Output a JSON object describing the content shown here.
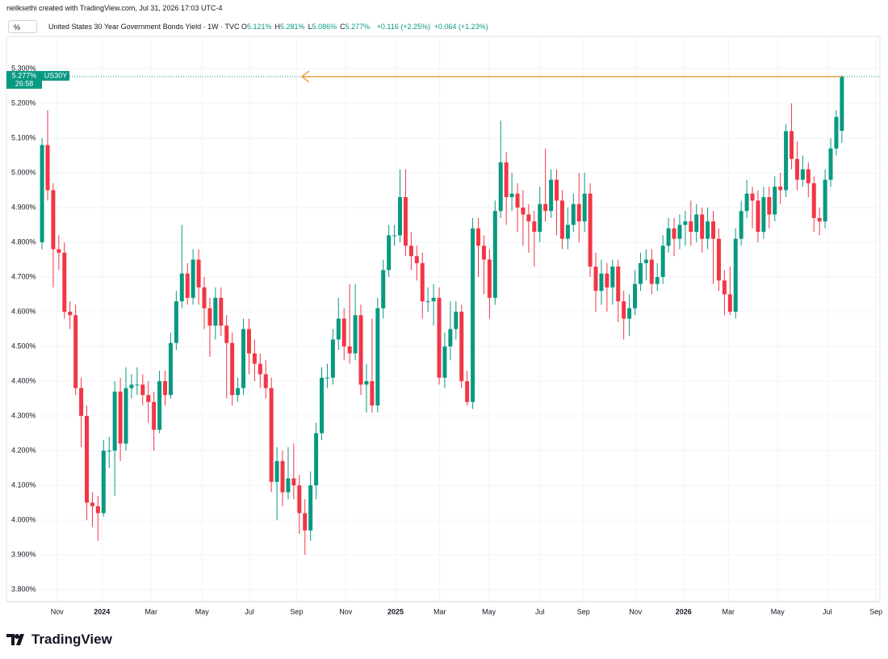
{
  "credit": "neilksethi created with TradingView.com, Jul 31, 2026 17:03 UTC-4",
  "chart_data": {
    "type": "candlestick",
    "unit_box": "%",
    "title": "United States 30 Year Government Bonds Yield · 1W · TVC",
    "ohlc_legend": [
      {
        "label": "O",
        "value": "5.121%"
      },
      {
        "label": "H",
        "value": "5.281%"
      },
      {
        "label": "L",
        "value": "5.086%"
      },
      {
        "label": "C",
        "value": "5.277%"
      }
    ],
    "change": "+0.116 (+2.25%)",
    "change_extended": "+0.064 (+1.23%)",
    "price_label": {
      "value": "5.277%",
      "symbol": "US30Y",
      "countdown": "26:58"
    },
    "up_color": "#089981",
    "down_color": "#f23645",
    "grid": true,
    "open": [
      4.8,
      5.08,
      4.95,
      4.78,
      4.77,
      4.6,
      4.59,
      4.38,
      4.3,
      4.05,
      4.04,
      4.02,
      4.2,
      4.2,
      4.37,
      4.22,
      4.38,
      4.39,
      4.39,
      4.36,
      4.34,
      4.26,
      4.4,
      4.36,
      4.51,
      4.63,
      4.71,
      4.64,
      4.75,
      4.67,
      4.61,
      4.56,
      4.64,
      4.56,
      4.51,
      4.36,
      4.38,
      4.55,
      4.48,
      4.45,
      4.42,
      4.38,
      4.11,
      4.17,
      4.08,
      4.12,
      4.1,
      4.02,
      3.97,
      4.1,
      4.25,
      4.41,
      4.41,
      4.52,
      4.58,
      4.5,
      4.48,
      4.59,
      4.39,
      4.4,
      4.33,
      4.61,
      4.72,
      4.82,
      4.82,
      4.93,
      4.79,
      4.76,
      4.74,
      4.63,
      4.63,
      4.64,
      4.41,
      4.5,
      4.55,
      4.6,
      4.4,
      4.34,
      4.84,
      4.79,
      4.75,
      4.64,
      4.89,
      5.03,
      4.93,
      4.94,
      4.9,
      4.88,
      4.86,
      4.83,
      4.91,
      4.89,
      4.98,
      4.92,
      4.81,
      4.85,
      4.91,
      4.86,
      4.94,
      4.73,
      4.66,
      4.71,
      4.67,
      4.73,
      4.63,
      4.58,
      4.61,
      4.68,
      4.74,
      4.75,
      4.68,
      4.7,
      4.79,
      4.84,
      4.81,
      4.85,
      4.86,
      4.83,
      4.88,
      4.81,
      4.86,
      4.81,
      4.69,
      4.65,
      4.6,
      4.81,
      4.89,
      4.94,
      4.92,
      4.83,
      4.93,
      4.88,
      4.96,
      4.95,
      5.12,
      5.04,
      4.98,
      5.01,
      4.97,
      4.87,
      4.86,
      4.98,
      5.07,
      5.121
    ],
    "high": [
      5.1,
      5.18,
      4.97,
      4.82,
      4.8,
      4.63,
      4.62,
      4.41,
      4.33,
      4.08,
      4.07,
      4.23,
      4.24,
      4.4,
      4.41,
      4.44,
      4.42,
      4.44,
      4.42,
      4.4,
      4.37,
      4.43,
      4.43,
      4.54,
      4.66,
      4.85,
      4.74,
      4.78,
      4.78,
      4.7,
      4.64,
      4.67,
      4.67,
      4.59,
      4.54,
      4.41,
      4.58,
      4.58,
      4.52,
      4.48,
      4.46,
      4.41,
      4.21,
      4.2,
      4.21,
      4.22,
      4.13,
      4.06,
      4.14,
      4.28,
      4.44,
      4.45,
      4.55,
      4.64,
      4.61,
      4.68,
      4.68,
      4.62,
      4.45,
      4.58,
      4.64,
      4.75,
      4.85,
      4.85,
      5.01,
      5.01,
      4.83,
      4.79,
      4.77,
      4.67,
      4.68,
      4.67,
      4.54,
      4.63,
      4.63,
      4.62,
      4.43,
      4.87,
      4.87,
      4.82,
      4.78,
      4.92,
      5.15,
      5.06,
      5.0,
      4.97,
      4.95,
      4.91,
      4.89,
      4.96,
      5.07,
      5.01,
      5.01,
      4.95,
      4.9,
      4.94,
      5.0,
      5.0,
      4.97,
      4.77,
      4.75,
      4.74,
      4.75,
      4.75,
      4.66,
      4.65,
      4.72,
      4.77,
      4.78,
      4.78,
      4.74,
      4.82,
      4.87,
      4.87,
      4.88,
      4.89,
      4.92,
      4.91,
      4.9,
      4.9,
      4.89,
      4.84,
      4.72,
      4.73,
      4.84,
      4.92,
      4.98,
      4.96,
      4.95,
      4.96,
      4.96,
      4.99,
      5.0,
      5.14,
      5.2,
      5.09,
      5.05,
      5.03,
      4.99,
      4.9,
      5.01,
      5.1,
      5.18,
      5.281
    ],
    "low": [
      4.78,
      4.92,
      4.67,
      4.72,
      4.58,
      4.55,
      4.36,
      4.21,
      4.0,
      3.98,
      3.94,
      4.01,
      4.15,
      4.07,
      4.17,
      4.2,
      4.35,
      4.36,
      4.33,
      4.28,
      4.2,
      4.25,
      4.33,
      4.35,
      4.49,
      4.61,
      4.62,
      4.62,
      4.62,
      4.55,
      4.47,
      4.52,
      4.53,
      4.35,
      4.33,
      4.34,
      4.36,
      4.42,
      4.4,
      4.38,
      4.35,
      4.08,
      4.0,
      4.04,
      4.06,
      4.06,
      3.96,
      3.9,
      3.94,
      4.06,
      4.23,
      4.38,
      4.39,
      4.49,
      4.46,
      4.45,
      4.46,
      4.36,
      4.31,
      4.31,
      4.31,
      4.58,
      4.7,
      4.79,
      4.8,
      4.76,
      4.72,
      4.69,
      4.58,
      4.6,
      4.56,
      4.39,
      4.38,
      4.46,
      4.52,
      4.38,
      4.33,
      4.32,
      4.7,
      4.65,
      4.58,
      4.62,
      4.87,
      4.85,
      4.89,
      4.83,
      4.79,
      4.77,
      4.73,
      4.8,
      4.86,
      4.87,
      4.82,
      4.78,
      4.78,
      4.83,
      4.8,
      4.83,
      4.7,
      4.6,
      4.62,
      4.6,
      4.62,
      4.57,
      4.52,
      4.53,
      4.59,
      4.66,
      4.69,
      4.65,
      4.66,
      4.68,
      4.77,
      4.76,
      4.78,
      4.79,
      4.79,
      4.8,
      4.77,
      4.78,
      4.68,
      4.66,
      4.59,
      4.59,
      4.58,
      4.79,
      4.87,
      4.84,
      4.8,
      4.81,
      4.84,
      4.86,
      4.91,
      4.93,
      5.01,
      4.95,
      4.96,
      4.93,
      4.83,
      4.82,
      4.84,
      4.96,
      5.05,
      5.086
    ],
    "close": [
      5.08,
      4.95,
      4.78,
      4.77,
      4.6,
      4.59,
      4.38,
      4.3,
      4.05,
      4.04,
      4.02,
      4.2,
      4.2,
      4.37,
      4.22,
      4.38,
      4.39,
      4.39,
      4.36,
      4.34,
      4.26,
      4.4,
      4.36,
      4.51,
      4.63,
      4.71,
      4.64,
      4.75,
      4.67,
      4.61,
      4.56,
      4.64,
      4.56,
      4.51,
      4.36,
      4.38,
      4.55,
      4.48,
      4.45,
      4.42,
      4.38,
      4.11,
      4.17,
      4.08,
      4.12,
      4.1,
      4.02,
      3.97,
      4.1,
      4.25,
      4.41,
      4.41,
      4.52,
      4.58,
      4.5,
      4.48,
      4.59,
      4.39,
      4.4,
      4.33,
      4.61,
      4.72,
      4.82,
      4.82,
      4.93,
      4.79,
      4.76,
      4.74,
      4.63,
      4.63,
      4.64,
      4.41,
      4.5,
      4.55,
      4.6,
      4.4,
      4.34,
      4.84,
      4.79,
      4.75,
      4.64,
      4.89,
      5.03,
      4.93,
      4.94,
      4.9,
      4.88,
      4.86,
      4.83,
      4.91,
      4.89,
      4.98,
      4.92,
      4.81,
      4.85,
      4.91,
      4.86,
      4.94,
      4.73,
      4.66,
      4.71,
      4.67,
      4.73,
      4.63,
      4.58,
      4.61,
      4.68,
      4.74,
      4.75,
      4.68,
      4.7,
      4.79,
      4.84,
      4.81,
      4.85,
      4.86,
      4.83,
      4.88,
      4.81,
      4.86,
      4.81,
      4.69,
      4.65,
      4.6,
      4.81,
      4.89,
      4.94,
      4.92,
      4.83,
      4.93,
      4.88,
      4.96,
      4.95,
      5.12,
      5.04,
      4.98,
      5.01,
      4.97,
      4.87,
      4.86,
      4.98,
      5.07,
      5.161,
      5.277
    ],
    "ylim": [
      3.765,
      5.393
    ],
    "yticks": [
      {
        "value": 3.8,
        "label": "3.800%"
      },
      {
        "value": 3.9,
        "label": "3.900%"
      },
      {
        "value": 4.0,
        "label": "4.000%"
      },
      {
        "value": 4.1,
        "label": "4.100%"
      },
      {
        "value": 4.2,
        "label": "4.200%"
      },
      {
        "value": 4.3,
        "label": "4.300%"
      },
      {
        "value": 4.4,
        "label": "4.400%"
      },
      {
        "value": 4.5,
        "label": "4.500%"
      },
      {
        "value": 4.6,
        "label": "4.600%"
      },
      {
        "value": 4.7,
        "label": "4.700%"
      },
      {
        "value": 4.8,
        "label": "4.800%"
      },
      {
        "value": 4.9,
        "label": "4.900%"
      },
      {
        "value": 5.0,
        "label": "5.000%"
      },
      {
        "value": 5.1,
        "label": "5.100%"
      },
      {
        "value": 5.2,
        "label": "5.200%"
      },
      {
        "value": 5.3,
        "label": "5.300%"
      }
    ],
    "xlim": [
      -0.3,
      149.8
    ],
    "xticks": [
      {
        "value": 2.7,
        "label": "Nov"
      },
      {
        "value": 10.7,
        "label": "2024"
      },
      {
        "value": 19.5,
        "label": "Mar"
      },
      {
        "value": 28.6,
        "label": "May"
      },
      {
        "value": 37.1,
        "label": "Jul"
      },
      {
        "value": 45.5,
        "label": "Sep"
      },
      {
        "value": 54.3,
        "label": "Nov"
      },
      {
        "value": 63.2,
        "label": "2025"
      },
      {
        "value": 71.1,
        "label": "Mar"
      },
      {
        "value": 79.9,
        "label": "May"
      },
      {
        "value": 89.0,
        "label": "Jul"
      },
      {
        "value": 96.8,
        "label": "Sep"
      },
      {
        "value": 106.1,
        "label": "Nov"
      },
      {
        "value": 114.7,
        "label": "2026"
      },
      {
        "value": 122.7,
        "label": "Mar"
      },
      {
        "value": 131.5,
        "label": "May"
      },
      {
        "value": 140.4,
        "label": "Jul"
      },
      {
        "value": 149.1,
        "label": "Sep"
      }
    ]
  },
  "footer": {
    "brand": "TradingView"
  }
}
